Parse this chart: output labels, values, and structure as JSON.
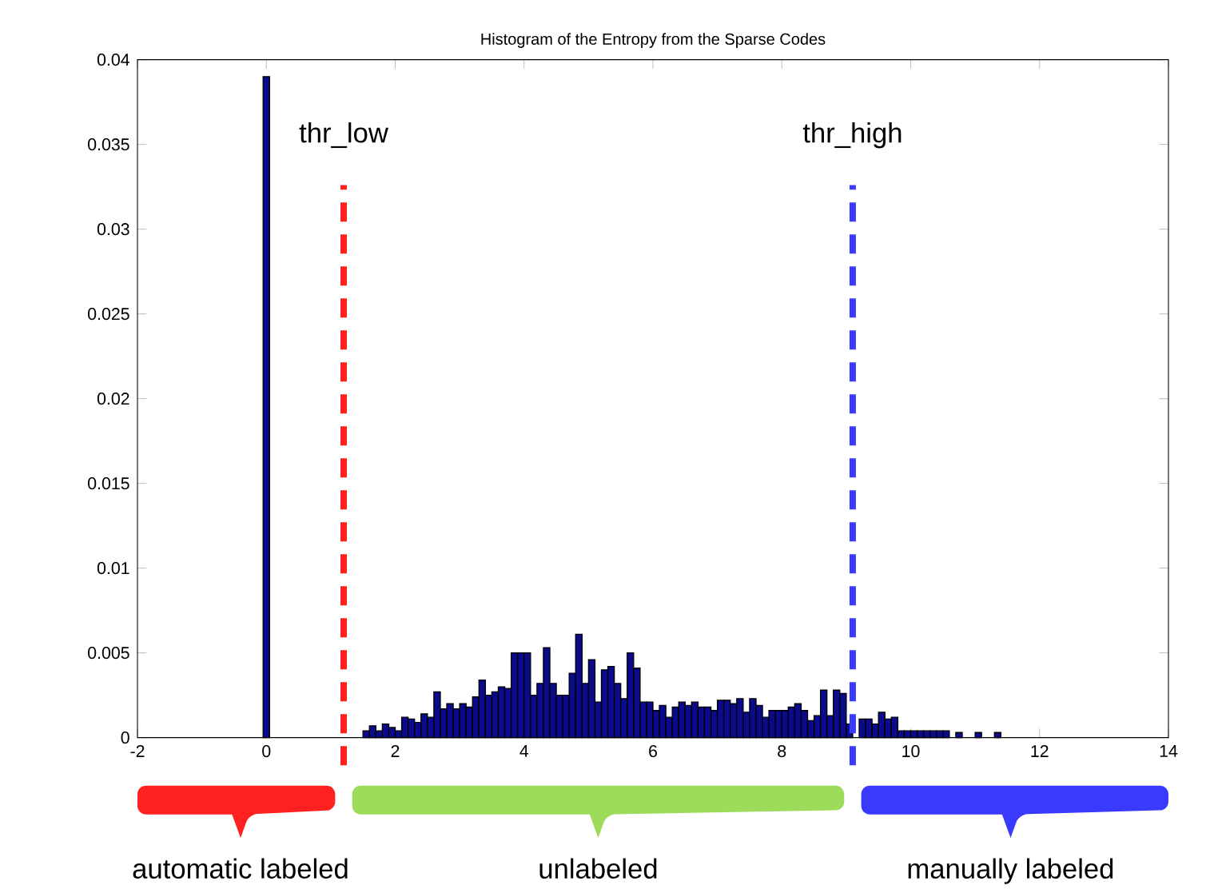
{
  "chart_data": {
    "type": "histogram",
    "title": "Histogram of the Entropy from the Sparse Codes",
    "bins": [
      -0.05,
      0.05,
      1.5,
      1.6,
      1.7,
      1.8,
      1.9,
      2.0,
      2.1,
      2.2,
      2.3,
      2.4,
      2.5,
      2.6,
      2.7,
      2.8,
      2.9,
      3.0,
      3.1,
      3.2,
      3.3,
      3.4,
      3.5,
      3.6,
      3.7,
      3.8,
      3.9,
      4.0,
      4.1,
      4.2,
      4.3,
      4.4,
      4.5,
      4.6,
      4.7,
      4.8,
      4.9,
      5.0,
      5.1,
      5.2,
      5.3,
      5.4,
      5.5,
      5.6,
      5.7,
      5.8,
      5.9,
      6.0,
      6.1,
      6.2,
      6.3,
      6.4,
      6.5,
      6.6,
      6.7,
      6.8,
      6.9,
      7.0,
      7.1,
      7.2,
      7.3,
      7.4,
      7.5,
      7.6,
      7.7,
      7.8,
      7.9,
      8.0,
      8.1,
      8.2,
      8.3,
      8.4,
      8.5,
      8.6,
      8.7,
      8.8,
      8.9,
      9.0,
      9.1,
      9.2,
      9.3,
      9.4,
      9.5,
      9.6,
      9.7,
      9.8,
      9.9,
      10.0,
      10.1,
      10.2,
      10.3,
      10.4,
      10.5,
      10.6,
      10.7,
      10.8,
      11.0,
      11.1,
      11.3,
      11.4
    ],
    "values": [
      0.039,
      0,
      0.0004,
      0.0007,
      0.0004,
      0.0008,
      0.0006,
      0.0004,
      0.0012,
      0.0011,
      0.0009,
      0.0014,
      0.0012,
      0.0027,
      0.0017,
      0.002,
      0.0017,
      0.002,
      0.0018,
      0.0024,
      0.0034,
      0.0025,
      0.0027,
      0.003,
      0.0029,
      0.005,
      0.005,
      0.005,
      0.0025,
      0.0032,
      0.0053,
      0.0032,
      0.0025,
      0.0025,
      0.0038,
      0.0061,
      0.0032,
      0.0046,
      0.0021,
      0.004,
      0.0042,
      0.0032,
      0.0023,
      0.005,
      0.0041,
      0.0021,
      0.0021,
      0.0016,
      0.0019,
      0.0012,
      0.0018,
      0.0021,
      0.0019,
      0.0021,
      0.0018,
      0.0018,
      0.0016,
      0.0022,
      0.0022,
      0.002,
      0.0023,
      0.0015,
      0.0023,
      0.0019,
      0.0012,
      0.0016,
      0.0016,
      0.0016,
      0.0018,
      0.002,
      0.0016,
      0.001,
      0.0013,
      0.0028,
      0.0013,
      0.0028,
      0.0026,
      0.0008,
      null,
      0.0011,
      0.0011,
      0.0008,
      0.0015,
      0.0011,
      0.0012,
      0.0004,
      0.0004,
      0.0004,
      0.0004,
      0.0004,
      0.0004,
      0.0004,
      0.0004,
      0,
      0.0003,
      0,
      0.0003,
      0,
      0.0003
    ],
    "color": "#0a0a8c",
    "xlim": [
      -2,
      14
    ],
    "xticks": [
      -2,
      0,
      2,
      4,
      6,
      8,
      10,
      12,
      14
    ],
    "ylim": [
      0,
      0.04
    ],
    "yticks": [
      0,
      0.005,
      0.01,
      0.015,
      0.02,
      0.025,
      0.03,
      0.035,
      0.04
    ],
    "ref_lines": [
      {
        "axis": "x",
        "value": 1.2,
        "label": "thr_low",
        "color": "#ff2020",
        "line_style": "dashed"
      },
      {
        "axis": "x",
        "value": 9.1,
        "label": "thr_high",
        "color": "#3a3aff",
        "line_style": "dashed"
      }
    ],
    "annotations": [
      "automatic labeled",
      "unlabeled",
      "manually labeled"
    ]
  }
}
